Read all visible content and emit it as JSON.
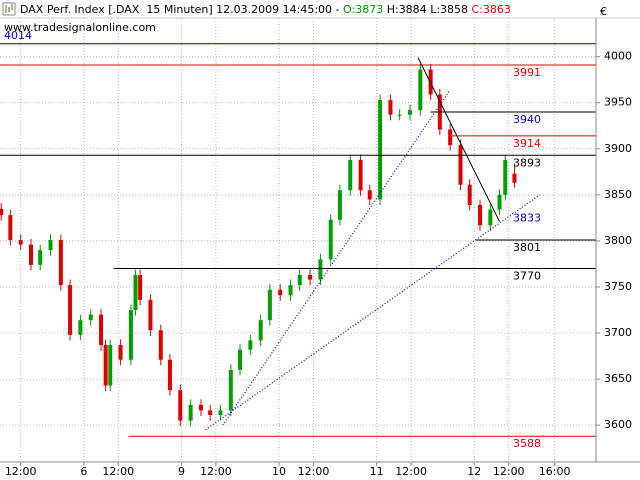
{
  "chart_data": {
    "type": "candlestick",
    "instrument": "DAX Perf. Index [.DAX  15 Minuten]",
    "timestamp": "12.03.2009 14:45:00",
    "separator": "-",
    "ohlc": [
      {
        "label": "O:",
        "value": 3873,
        "color": "#00a000"
      },
      {
        "label": "H:",
        "value": 3884,
        "color": "#000000"
      },
      {
        "label": "L:",
        "value": 3858,
        "color": "#000000"
      },
      {
        "label": "C:",
        "value": 3863,
        "color": "#e00000"
      }
    ],
    "source": "www.tradesignalonline.com",
    "currency": "€",
    "up_color": "#00a000",
    "down_color": "#e00000",
    "grid": true,
    "xlim": [
      1.2,
      53.1
    ],
    "xticks": [
      {
        "value": 3,
        "label": "12:00"
      },
      {
        "value": 8.5,
        "label": "6"
      },
      {
        "value": 11.5,
        "label": "12:00"
      },
      {
        "value": 17,
        "label": "9"
      },
      {
        "value": 20,
        "label": "12:00"
      },
      {
        "value": 25.5,
        "label": "10"
      },
      {
        "value": 28.5,
        "label": "12:00"
      },
      {
        "value": 34,
        "label": "11"
      },
      {
        "value": 37,
        "label": "12:00"
      },
      {
        "value": 42.5,
        "label": "12"
      },
      {
        "value": 45.5,
        "label": "12:00"
      },
      {
        "value": 49.5,
        "label": "16:00"
      }
    ],
    "ylim": [
      3560,
      4042
    ],
    "yticks": [
      3600,
      3650,
      3700,
      3750,
      3800,
      3850,
      3900,
      3950,
      4000
    ],
    "x": [
      1.3,
      2.1,
      3.0,
      3.9,
      4.7,
      5.6,
      6.5,
      7.3,
      8.2,
      9.1,
      10.0,
      10.4,
      10.8,
      11.7,
      12.6,
      13.0,
      13.4,
      14.3,
      15.2,
      16.0,
      16.9,
      17.8,
      18.7,
      19.5,
      20.4,
      21.3,
      22.1,
      23.0,
      23.9,
      24.7,
      25.6,
      26.5,
      27.3,
      28.2,
      29.1,
      30.0,
      30.8,
      31.7,
      32.6,
      33.4,
      34.3,
      35.2,
      36.0,
      36.9,
      37.8,
      38.7,
      39.5,
      40.4,
      41.3,
      42.1,
      43.0,
      43.9,
      44.7,
      45.2,
      46.0
    ],
    "open": [
      3835,
      3828,
      3801,
      3796,
      3774,
      3790,
      3801,
      3752,
      3698,
      3714,
      3720,
      3687,
      3643,
      3687,
      3671,
      3725,
      3763,
      3736,
      3703,
      3671,
      3638,
      3605,
      3622,
      3616,
      3611,
      3616,
      3660,
      3682,
      3692,
      3714,
      3747,
      3741,
      3752,
      3763,
      3758,
      3780,
      3823,
      3855,
      3888,
      3855,
      3845,
      3953,
      3937,
      3937,
      3942,
      3986,
      3959,
      3921,
      3904,
      3861,
      3839,
      3817,
      3834,
      3850,
      3873
    ],
    "high": [
      3841,
      3834,
      3807,
      3802,
      3796,
      3807,
      3807,
      3758,
      3720,
      3726,
      3726,
      3693,
      3693,
      3693,
      3731,
      3769,
      3769,
      3742,
      3709,
      3677,
      3644,
      3628,
      3628,
      3622,
      3622,
      3666,
      3688,
      3698,
      3720,
      3753,
      3753,
      3758,
      3769,
      3769,
      3786,
      3829,
      3861,
      3894,
      3894,
      3861,
      3959,
      3959,
      3943,
      3948,
      3992,
      3992,
      3965,
      3927,
      3910,
      3867,
      3845,
      3840,
      3856,
      3894,
      3884
    ],
    "low": [
      3822,
      3795,
      3790,
      3768,
      3768,
      3784,
      3746,
      3692,
      3692,
      3708,
      3681,
      3637,
      3637,
      3665,
      3665,
      3719,
      3730,
      3697,
      3665,
      3632,
      3599,
      3599,
      3610,
      3605,
      3605,
      3610,
      3654,
      3676,
      3686,
      3708,
      3735,
      3735,
      3746,
      3752,
      3752,
      3774,
      3817,
      3849,
      3849,
      3839,
      3839,
      3931,
      3931,
      3931,
      3936,
      3953,
      3915,
      3898,
      3855,
      3833,
      3811,
      3811,
      3828,
      3844,
      3858
    ],
    "close": [
      3828,
      3801,
      3796,
      3774,
      3790,
      3801,
      3752,
      3698,
      3714,
      3720,
      3687,
      3643,
      3687,
      3671,
      3725,
      3763,
      3736,
      3703,
      3671,
      3638,
      3605,
      3622,
      3616,
      3611,
      3616,
      3660,
      3682,
      3692,
      3714,
      3747,
      3741,
      3752,
      3763,
      3758,
      3780,
      3823,
      3855,
      3888,
      3855,
      3845,
      3953,
      3937,
      3937,
      3942,
      3986,
      3959,
      3921,
      3904,
      3861,
      3839,
      3817,
      3834,
      3850,
      3888,
      3863
    ],
    "levels": [
      {
        "value": 4014,
        "line_color": "#00008b",
        "label_color": "#0000cc",
        "from": 1.2,
        "label_side": "left"
      },
      {
        "value": 3991,
        "line_color": "#e00000",
        "label_color": "#e00000",
        "from": 1.2,
        "label_side": "right"
      },
      {
        "value": 3940,
        "line_color": "#000000",
        "label_color": "#0000cc",
        "from": 38.7,
        "label_side": "right"
      },
      {
        "value": 3914,
        "line_color": "#e00000",
        "label_color": "#e00000",
        "from": 40.4,
        "label_side": "right"
      },
      {
        "value": 3893,
        "line_color": "#000000",
        "label_color": "#000000",
        "from": 1.2,
        "label_side": "right"
      },
      {
        "value": 3833,
        "label_color": "#0000cc",
        "label_side": "right"
      },
      {
        "value": 3801,
        "line_color": "#000000",
        "label_color": "#000000",
        "from": 42.6,
        "label_side": "right"
      },
      {
        "value": 3770,
        "line_color": "#000000",
        "label_color": "#000000",
        "from": 11.1,
        "label_side": "right"
      },
      {
        "value": 3588,
        "line_color": "#e00000",
        "label_color": "#e00000",
        "from": 12.4,
        "label_side": "right"
      }
    ],
    "trendlines": [
      {
        "x": [
          37.6,
          44.7
        ],
        "y": [
          3999,
          3821
        ],
        "color": "#000000",
        "dotted": false
      },
      {
        "x": [
          20.6,
          40.4
        ],
        "y": [
          3600,
          3964
        ],
        "color": "#0000ff",
        "dotted": true
      },
      {
        "x": [
          19.1,
          48.2
        ],
        "y": [
          3595,
          3850
        ],
        "color": "#0000ff",
        "dotted": true
      }
    ]
  }
}
